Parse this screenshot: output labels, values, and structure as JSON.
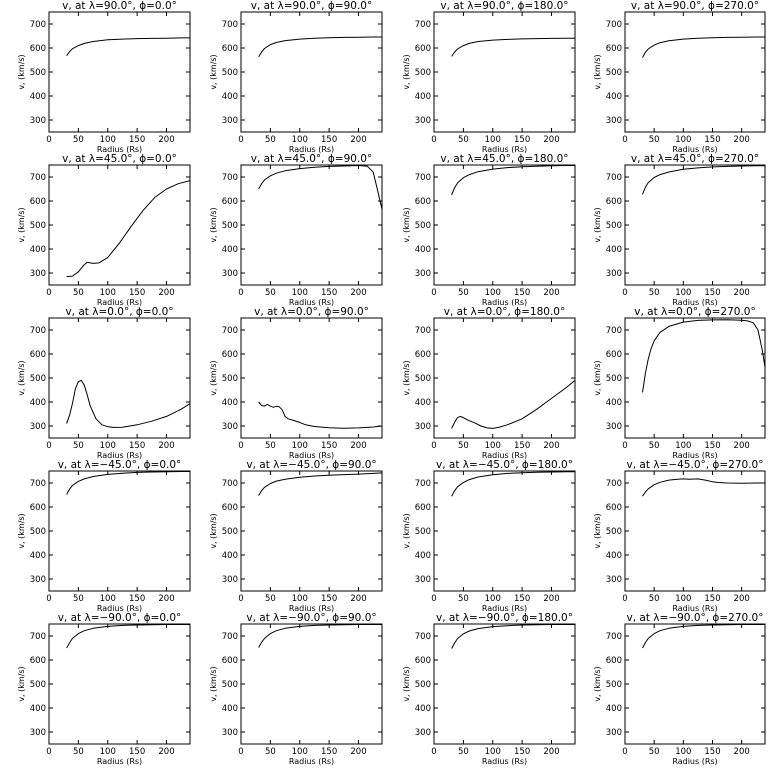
{
  "chart_data": [
    {
      "type": "line",
      "title": "v, at λ=90.0°, ϕ=0.0°",
      "xlabel": "Radius (Rs)",
      "ylabel": "v, (km/s)",
      "xlim": [
        0,
        240
      ],
      "ylim": [
        250,
        750
      ],
      "xticks": [
        0,
        50,
        100,
        150,
        200
      ],
      "yticks": [
        300,
        400,
        500,
        600,
        700
      ],
      "x": [
        30,
        35,
        40,
        50,
        60,
        75,
        100,
        125,
        150,
        175,
        200,
        225,
        240
      ],
      "y": [
        568,
        585,
        597,
        610,
        619,
        627,
        634,
        637,
        639,
        640,
        641,
        642,
        642
      ]
    },
    {
      "type": "line",
      "title": "v, at λ=90.0°, ϕ=90.0°",
      "xlabel": "Radius (Rs)",
      "ylabel": "v, (km/s)",
      "xlim": [
        0,
        240
      ],
      "ylim": [
        250,
        750
      ],
      "xticks": [
        0,
        50,
        100,
        150,
        200
      ],
      "yticks": [
        300,
        400,
        500,
        600,
        700
      ],
      "x": [
        30,
        35,
        40,
        50,
        60,
        75,
        100,
        125,
        150,
        175,
        200,
        225,
        240
      ],
      "y": [
        563,
        583,
        598,
        614,
        623,
        631,
        637,
        641,
        643,
        644,
        645,
        646,
        646
      ]
    },
    {
      "type": "line",
      "title": "v, at λ=90.0°, ϕ=180.0°",
      "xlabel": "Radius (Rs)",
      "ylabel": "v, (km/s)",
      "xlim": [
        0,
        240
      ],
      "ylim": [
        250,
        750
      ],
      "xticks": [
        0,
        50,
        100,
        150,
        200
      ],
      "yticks": [
        300,
        400,
        500,
        600,
        700
      ],
      "x": [
        30,
        35,
        40,
        50,
        60,
        75,
        100,
        125,
        150,
        175,
        200,
        225,
        240
      ],
      "y": [
        565,
        583,
        596,
        610,
        619,
        627,
        633,
        636,
        638,
        639,
        640,
        641,
        641
      ]
    },
    {
      "type": "line",
      "title": "v, at λ=90.0°, ϕ=270.0°",
      "xlabel": "Radius (Rs)",
      "ylabel": "v, (km/s)",
      "xlim": [
        0,
        240
      ],
      "ylim": [
        250,
        750
      ],
      "xticks": [
        0,
        50,
        100,
        150,
        200
      ],
      "yticks": [
        300,
        400,
        500,
        600,
        700
      ],
      "x": [
        30,
        35,
        40,
        50,
        60,
        75,
        100,
        125,
        150,
        175,
        200,
        225,
        240
      ],
      "y": [
        560,
        582,
        596,
        612,
        622,
        630,
        637,
        641,
        643,
        644,
        645,
        646,
        646
      ]
    },
    {
      "type": "line",
      "title": "v, at λ=45.0°, ϕ=0.0°",
      "xlabel": "Radius (Rs)",
      "ylabel": "v, (km/s)",
      "xlim": [
        0,
        240
      ],
      "ylim": [
        250,
        750
      ],
      "xticks": [
        0,
        50,
        100,
        150,
        200
      ],
      "yticks": [
        300,
        400,
        500,
        600,
        700
      ],
      "x": [
        30,
        40,
        50,
        60,
        65,
        75,
        85,
        100,
        120,
        140,
        160,
        180,
        200,
        220,
        240
      ],
      "y": [
        285,
        287,
        305,
        335,
        345,
        340,
        342,
        365,
        425,
        495,
        560,
        615,
        650,
        672,
        685
      ]
    },
    {
      "type": "line",
      "title": "v, at λ=45.0°, ϕ=90.0°",
      "xlabel": "Radius (Rs)",
      "ylabel": "v, (km/s)",
      "xlim": [
        0,
        240
      ],
      "ylim": [
        250,
        750
      ],
      "xticks": [
        0,
        50,
        100,
        150,
        200
      ],
      "yticks": [
        300,
        400,
        500,
        600,
        700
      ],
      "x": [
        30,
        35,
        40,
        50,
        60,
        75,
        100,
        125,
        150,
        175,
        200,
        215,
        225,
        232,
        240
      ],
      "y": [
        650,
        672,
        688,
        705,
        716,
        726,
        735,
        741,
        744,
        746,
        748,
        745,
        720,
        650,
        565
      ]
    },
    {
      "type": "line",
      "title": "v, at λ=45.0°, ϕ=180.0°",
      "xlabel": "Radius (Rs)",
      "ylabel": "v, (km/s)",
      "xlim": [
        0,
        240
      ],
      "ylim": [
        250,
        750
      ],
      "xticks": [
        0,
        50,
        100,
        150,
        200
      ],
      "yticks": [
        300,
        400,
        500,
        600,
        700
      ],
      "x": [
        30,
        35,
        40,
        50,
        60,
        75,
        100,
        125,
        150,
        175,
        200,
        225,
        240
      ],
      "y": [
        625,
        655,
        675,
        697,
        710,
        722,
        733,
        739,
        743,
        745,
        747,
        748,
        748
      ]
    },
    {
      "type": "line",
      "title": "v, at λ=45.0°, ϕ=270.0°",
      "xlabel": "Radius (Rs)",
      "ylabel": "v, (km/s)",
      "xlim": [
        0,
        240
      ],
      "ylim": [
        250,
        750
      ],
      "xticks": [
        0,
        50,
        100,
        150,
        200
      ],
      "yticks": [
        300,
        400,
        500,
        600,
        700
      ],
      "x": [
        30,
        35,
        40,
        50,
        60,
        75,
        100,
        125,
        150,
        175,
        200,
        225,
        240
      ],
      "y": [
        628,
        657,
        677,
        698,
        710,
        721,
        732,
        738,
        742,
        744,
        746,
        747,
        747
      ]
    },
    {
      "type": "line",
      "title": "v, at λ=0.0°, ϕ=0.0°",
      "xlabel": "Radius (Rs)",
      "ylabel": "v, (km/s)",
      "xlim": [
        0,
        240
      ],
      "ylim": [
        250,
        750
      ],
      "xticks": [
        0,
        50,
        100,
        150,
        200
      ],
      "yticks": [
        300,
        400,
        500,
        600,
        700
      ],
      "x": [
        30,
        35,
        40,
        45,
        50,
        55,
        60,
        65,
        70,
        80,
        90,
        100,
        110,
        125,
        150,
        175,
        200,
        225,
        240
      ],
      "y": [
        310,
        345,
        395,
        455,
        485,
        490,
        470,
        430,
        385,
        330,
        305,
        297,
        294,
        295,
        305,
        320,
        340,
        370,
        393
      ]
    },
    {
      "type": "line",
      "title": "v, at λ=0.0°, ϕ=90.0°",
      "xlabel": "Radius (Rs)",
      "ylabel": "v, (km/s)",
      "xlim": [
        0,
        240
      ],
      "ylim": [
        250,
        750
      ],
      "xticks": [
        0,
        50,
        100,
        150,
        200
      ],
      "yticks": [
        300,
        400,
        500,
        600,
        700
      ],
      "x": [
        30,
        35,
        40,
        45,
        50,
        55,
        60,
        65,
        70,
        75,
        80,
        90,
        100,
        110,
        125,
        150,
        175,
        200,
        225,
        240
      ],
      "y": [
        400,
        385,
        383,
        390,
        383,
        378,
        382,
        380,
        368,
        340,
        330,
        323,
        315,
        305,
        298,
        293,
        291,
        292,
        296,
        300
      ]
    },
    {
      "type": "line",
      "title": "v, at λ=0.0°, ϕ=180.0°",
      "xlabel": "Radius (Rs)",
      "ylabel": "v, (km/s)",
      "xlim": [
        0,
        240
      ],
      "ylim": [
        250,
        750
      ],
      "xticks": [
        0,
        50,
        100,
        150,
        200
      ],
      "yticks": [
        300,
        400,
        500,
        600,
        700
      ],
      "x": [
        30,
        35,
        40,
        45,
        50,
        55,
        60,
        70,
        80,
        90,
        100,
        110,
        125,
        150,
        175,
        200,
        225,
        240
      ],
      "y": [
        290,
        315,
        335,
        340,
        335,
        328,
        322,
        312,
        300,
        292,
        290,
        294,
        305,
        330,
        370,
        415,
        460,
        490
      ]
    },
    {
      "type": "line",
      "title": "v, at λ=0.0°, ϕ=270.0°",
      "xlabel": "Radius (Rs)",
      "ylabel": "v, (km/s)",
      "xlim": [
        0,
        240
      ],
      "ylim": [
        250,
        750
      ],
      "xticks": [
        0,
        50,
        100,
        150,
        200
      ],
      "yticks": [
        300,
        400,
        500,
        600,
        700
      ],
      "x": [
        30,
        35,
        40,
        45,
        50,
        60,
        75,
        100,
        125,
        150,
        175,
        200,
        210,
        220,
        228,
        235,
        240
      ],
      "y": [
        440,
        520,
        580,
        625,
        655,
        690,
        715,
        733,
        740,
        742,
        743,
        741,
        738,
        730,
        700,
        620,
        545
      ]
    },
    {
      "type": "line",
      "title": "v, at λ=−45.0°, ϕ=0.0°",
      "xlabel": "Radius (Rs)",
      "ylabel": "v, (km/s)",
      "xlim": [
        0,
        240
      ],
      "ylim": [
        250,
        750
      ],
      "xticks": [
        0,
        50,
        100,
        150,
        200
      ],
      "yticks": [
        300,
        400,
        500,
        600,
        700
      ],
      "x": [
        30,
        35,
        40,
        50,
        60,
        75,
        100,
        125,
        150,
        175,
        200,
        225,
        240
      ],
      "y": [
        652,
        675,
        690,
        707,
        717,
        727,
        736,
        741,
        744,
        746,
        747,
        748,
        748
      ]
    },
    {
      "type": "line",
      "title": "v, at λ=−45.0°, ϕ=90.0°",
      "xlabel": "Radius (Rs)",
      "ylabel": "v, (km/s)",
      "xlim": [
        0,
        240
      ],
      "ylim": [
        250,
        750
      ],
      "xticks": [
        0,
        50,
        100,
        150,
        200
      ],
      "yticks": [
        300,
        400,
        500,
        600,
        700
      ],
      "x": [
        30,
        35,
        40,
        50,
        60,
        75,
        100,
        125,
        150,
        175,
        200,
        225,
        240
      ],
      "y": [
        648,
        668,
        682,
        698,
        708,
        716,
        724,
        729,
        732,
        735,
        737,
        740,
        742
      ]
    },
    {
      "type": "line",
      "title": "v, at λ=−45.0°, ϕ=180.0°",
      "xlabel": "Radius (Rs)",
      "ylabel": "v, (km/s)",
      "xlim": [
        0,
        240
      ],
      "ylim": [
        250,
        750
      ],
      "xticks": [
        0,
        50,
        100,
        150,
        200
      ],
      "yticks": [
        300,
        400,
        500,
        600,
        700
      ],
      "x": [
        30,
        35,
        40,
        50,
        60,
        75,
        100,
        125,
        150,
        175,
        200,
        225,
        240
      ],
      "y": [
        645,
        668,
        684,
        702,
        714,
        725,
        734,
        740,
        743,
        745,
        746,
        747,
        747
      ]
    },
    {
      "type": "line",
      "title": "v, at λ=−45.0°, ϕ=270.0°",
      "xlabel": "Radius (Rs)",
      "ylabel": "v, (km/s)",
      "xlim": [
        0,
        240
      ],
      "ylim": [
        250,
        750
      ],
      "xticks": [
        0,
        50,
        100,
        150,
        200
      ],
      "yticks": [
        300,
        400,
        500,
        600,
        700
      ],
      "x": [
        30,
        35,
        40,
        50,
        60,
        75,
        90,
        100,
        110,
        125,
        140,
        150,
        160,
        175,
        200,
        225,
        240
      ],
      "y": [
        645,
        662,
        676,
        693,
        703,
        712,
        716,
        717,
        716,
        717,
        711,
        705,
        702,
        700,
        699,
        700,
        700
      ]
    },
    {
      "type": "line",
      "title": "v, at λ=−90.0°, ϕ=0.0°",
      "xlabel": "Radius (Rs)",
      "ylabel": "v, (km/s)",
      "xlim": [
        0,
        240
      ],
      "ylim": [
        250,
        750
      ],
      "xticks": [
        0,
        50,
        100,
        150,
        200
      ],
      "yticks": [
        300,
        400,
        500,
        600,
        700
      ],
      "x": [
        30,
        35,
        40,
        50,
        60,
        75,
        100,
        125,
        150,
        175,
        200,
        225,
        240
      ],
      "y": [
        650,
        672,
        690,
        710,
        722,
        732,
        740,
        744,
        746,
        747,
        748,
        748,
        748
      ]
    },
    {
      "type": "line",
      "title": "v, at λ=−90.0°, ϕ=90.0°",
      "xlabel": "Radius (Rs)",
      "ylabel": "v, (km/s)",
      "xlim": [
        0,
        240
      ],
      "ylim": [
        250,
        750
      ],
      "xticks": [
        0,
        50,
        100,
        150,
        200
      ],
      "yticks": [
        300,
        400,
        500,
        600,
        700
      ],
      "x": [
        30,
        35,
        40,
        50,
        60,
        75,
        100,
        125,
        150,
        175,
        200,
        225,
        240
      ],
      "y": [
        652,
        674,
        690,
        710,
        722,
        732,
        740,
        744,
        746,
        747,
        748,
        748,
        748
      ]
    },
    {
      "type": "line",
      "title": "v, at λ=−90.0°, ϕ=180.0°",
      "xlabel": "Radius (Rs)",
      "ylabel": "v, (km/s)",
      "xlim": [
        0,
        240
      ],
      "ylim": [
        250,
        750
      ],
      "xticks": [
        0,
        50,
        100,
        150,
        200
      ],
      "yticks": [
        300,
        400,
        500,
        600,
        700
      ],
      "x": [
        30,
        35,
        40,
        50,
        60,
        75,
        100,
        125,
        150,
        175,
        200,
        225,
        240
      ],
      "y": [
        648,
        671,
        689,
        709,
        721,
        731,
        739,
        743,
        746,
        747,
        748,
        748,
        748
      ]
    },
    {
      "type": "line",
      "title": "v, at λ=−90.0°, ϕ=270.0°",
      "xlabel": "Radius (Rs)",
      "ylabel": "v, (km/s)",
      "xlim": [
        0,
        240
      ],
      "ylim": [
        250,
        750
      ],
      "xticks": [
        0,
        50,
        100,
        150,
        200
      ],
      "yticks": [
        300,
        400,
        500,
        600,
        700
      ],
      "x": [
        30,
        35,
        40,
        50,
        60,
        75,
        100,
        125,
        150,
        175,
        200,
        225,
        240
      ],
      "y": [
        650,
        673,
        690,
        710,
        722,
        732,
        740,
        744,
        746,
        747,
        748,
        748,
        748
      ]
    }
  ]
}
